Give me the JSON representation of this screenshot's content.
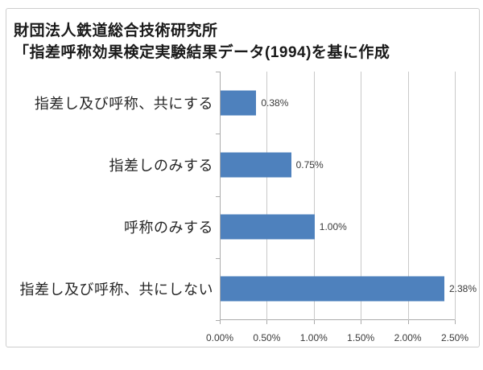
{
  "header": {
    "source_line1": "財団法人鉄道総合技術研究所",
    "source_line2": "「指差呼称効果検定実験結果データ(1994)を基に作成"
  },
  "chart_data": {
    "type": "bar",
    "orientation": "horizontal",
    "categories": [
      "指差し及び呼称、共にする",
      "指差しのみする",
      "呼称のみする",
      "指差し及び呼称、共にしない"
    ],
    "values": [
      0.38,
      0.75,
      1.0,
      2.38
    ],
    "value_labels": [
      "0.38%",
      "0.75%",
      "1.00%",
      "2.38%"
    ],
    "x_tick_values": [
      0,
      0.5,
      1.0,
      1.5,
      2.0,
      2.5
    ],
    "x_tick_labels": [
      "0.00%",
      "0.50%",
      "1.00%",
      "1.50%",
      "2.00%",
      "2.50%"
    ],
    "xlim": [
      0,
      2.5
    ],
    "grid": "vertical-only",
    "legend": "none",
    "colors": {
      "bar": "#4E81BD",
      "gridline": "#C9C9C9",
      "axis": "#ABABAB",
      "frame_border": "#CDCDCD",
      "title_text": "#1A1A1A",
      "category_text": "#262626",
      "value_text": "#3A3A3A"
    }
  }
}
